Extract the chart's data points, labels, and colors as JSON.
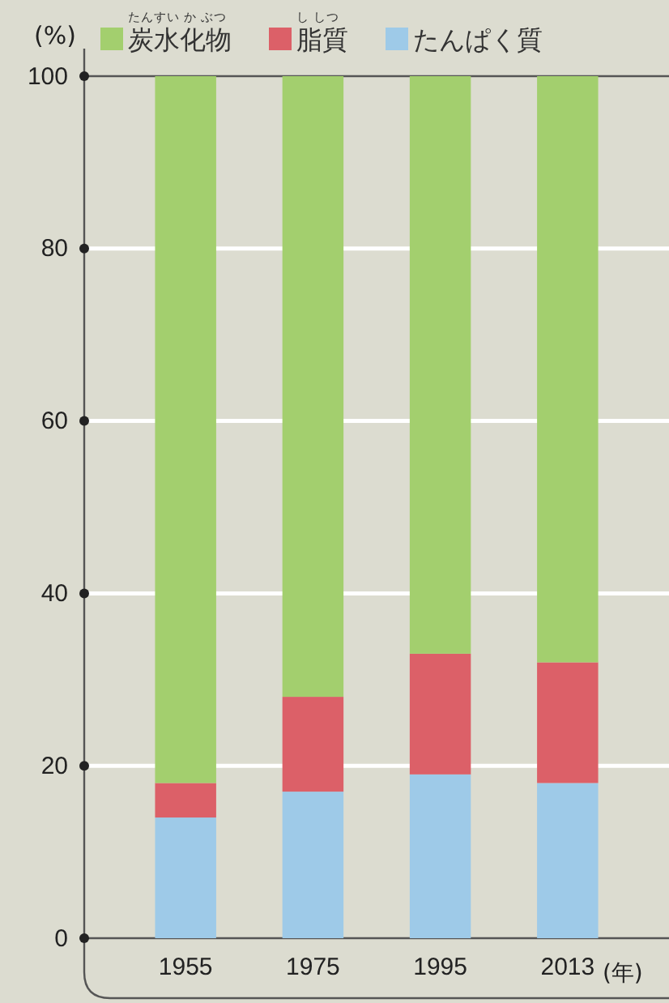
{
  "chart_data": {
    "type": "bar",
    "stacked": true,
    "ylabel": "(%)",
    "xlabel": "(年)",
    "categories": [
      "1955",
      "1975",
      "1995",
      "2013"
    ],
    "series": [
      {
        "name": "たんぱく質",
        "color": "#9ecae8",
        "values": [
          14,
          17,
          19,
          18
        ]
      },
      {
        "name": "脂質",
        "color": "#dc6068",
        "values": [
          4,
          11,
          14,
          14
        ]
      },
      {
        "name": "炭水化物",
        "color": "#a3cf6e",
        "values": [
          82,
          72,
          67,
          68
        ]
      }
    ],
    "ylim": [
      0,
      100
    ],
    "yticks": [
      0,
      20,
      40,
      60,
      80,
      100
    ],
    "grid": "y",
    "legend": "top",
    "annotations": [
      "たんすい か ぶつ",
      "し しつ"
    ]
  }
}
